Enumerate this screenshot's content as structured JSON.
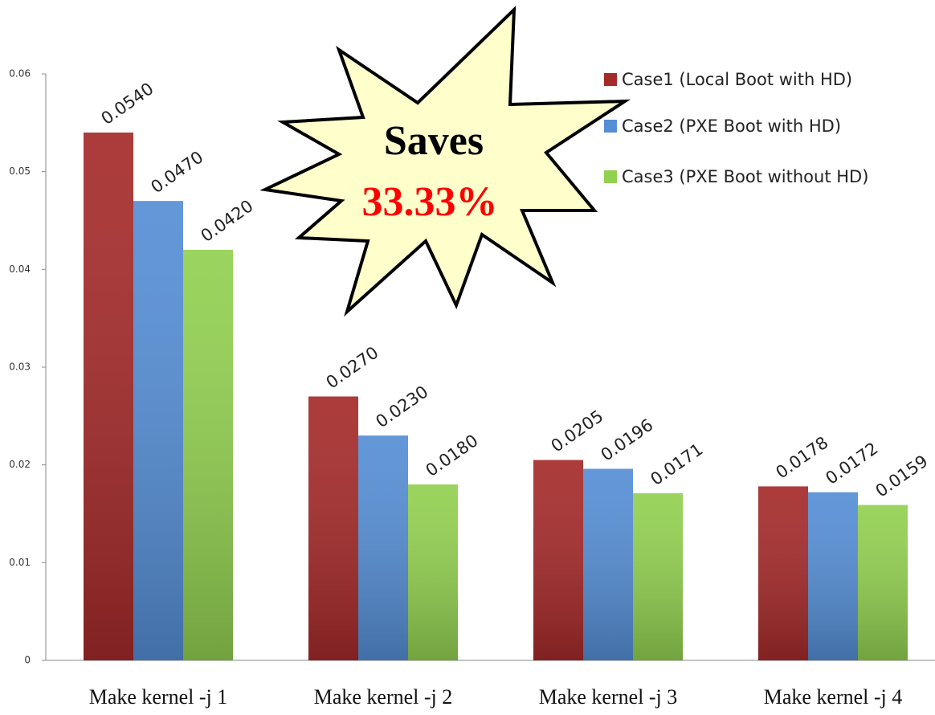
{
  "chart_data": {
    "type": "bar",
    "categories": [
      "Make kernel -j 1",
      "Make kernel -j 2",
      "Make kernel -j 3",
      "Make kernel -j 4"
    ],
    "series": [
      {
        "name": "Case1 (Local Boot with HD)",
        "color": "#a52a2a",
        "values": [
          0.054,
          0.027,
          0.0205,
          0.0178
        ],
        "value_labels": [
          "0.0540",
          "0.0270",
          "0.0205",
          "0.0178"
        ]
      },
      {
        "name": "Case2 (PXE Boot with HD)",
        "color": "#558ed5",
        "values": [
          0.047,
          0.023,
          0.0196,
          0.0172
        ],
        "value_labels": [
          "0.0470",
          "0.0230",
          "0.0196",
          "0.0172"
        ]
      },
      {
        "name": "Case3 (PXE Boot without HD)",
        "color": "#92d050",
        "values": [
          0.042,
          0.018,
          0.0171,
          0.0159
        ],
        "value_labels": [
          "0.0420",
          "0.0180",
          "0.0171",
          "0.0159"
        ]
      }
    ],
    "ylim": [
      0,
      0.06
    ],
    "yticks": [
      0,
      0.01,
      0.02,
      0.03,
      0.04,
      0.05,
      0.06
    ],
    "annotations": [
      "Saves",
      "33.33%"
    ],
    "legend": "upper right"
  }
}
